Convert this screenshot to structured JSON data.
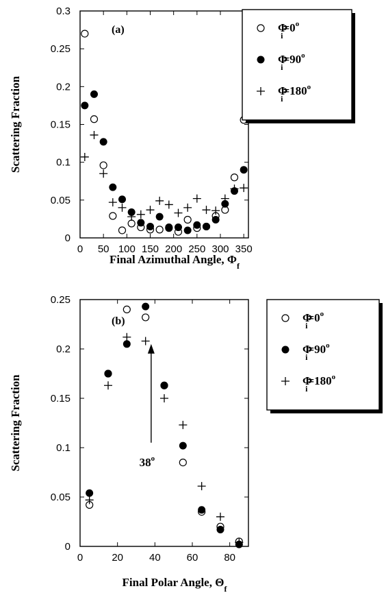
{
  "chart_data": [
    {
      "type": "scatter",
      "panel_label": "(a)",
      "xlabel": "Final Azimuthal Angle, Φ",
      "xlabel_sub": "f",
      "ylabel": "Scattering Fraction",
      "xlim": [
        0,
        360
      ],
      "ylim": [
        0,
        0.3
      ],
      "xticks": [
        "0",
        "50",
        "100",
        "150",
        "200",
        "250",
        "300",
        "350"
      ],
      "yticks": [
        "0",
        "0.05",
        "0.1",
        "0.15",
        "0.2",
        "0.25",
        "0.3"
      ],
      "legend_position": "top-right",
      "series": [
        {
          "legend": {
            "main": "Φ",
            "sub": "i",
            "value": "=0",
            "sup": "o"
          },
          "marker": "open-circle",
          "x": [
            10,
            30,
            50,
            70,
            90,
            110,
            130,
            150,
            170,
            190,
            210,
            230,
            250,
            270,
            290,
            310,
            330,
            350
          ],
          "y": [
            0.27,
            0.157,
            0.096,
            0.029,
            0.01,
            0.019,
            0.014,
            0.011,
            0.011,
            0.013,
            0.008,
            0.024,
            0.013,
            0.015,
            0.029,
            0.037,
            0.08,
            0.156
          ]
        },
        {
          "legend": {
            "main": "Φ",
            "sub": "i",
            "value": "=90",
            "sup": "o"
          },
          "marker": "filled-circle",
          "x": [
            10,
            30,
            50,
            70,
            90,
            110,
            130,
            150,
            170,
            190,
            210,
            230,
            250,
            270,
            290,
            310,
            330,
            350
          ],
          "y": [
            0.175,
            0.19,
            0.127,
            0.067,
            0.051,
            0.034,
            0.02,
            0.015,
            0.028,
            0.014,
            0.014,
            0.01,
            0.017,
            0.015,
            0.024,
            0.045,
            0.062,
            0.09
          ]
        },
        {
          "legend": {
            "main": "Φ",
            "sub": "i",
            "value": "=180",
            "sup": "o"
          },
          "marker": "plus",
          "x": [
            10,
            30,
            50,
            70,
            90,
            110,
            130,
            150,
            170,
            190,
            210,
            230,
            250,
            270,
            290,
            310,
            330,
            350
          ],
          "y": [
            0.107,
            0.136,
            0.085,
            0.047,
            0.04,
            0.028,
            0.031,
            0.037,
            0.049,
            0.044,
            0.033,
            0.04,
            0.052,
            0.037,
            0.036,
            0.052,
            0.065,
            0.066
          ]
        }
      ]
    },
    {
      "type": "scatter",
      "panel_label": "(b)",
      "xlabel": "Final Polar Angle, Θ",
      "xlabel_sub": "f",
      "ylabel": "Scattering Fraction",
      "xlim": [
        0,
        90
      ],
      "ylim": [
        0,
        0.25
      ],
      "xticks": [
        "0",
        "20",
        "40",
        "60",
        "80"
      ],
      "yticks": [
        "0",
        "0.05",
        "0.1",
        "0.15",
        "0.2",
        "0.25"
      ],
      "legend_position": "top-right",
      "annotation": {
        "text": "38",
        "sup": "o",
        "arrow_x": 38,
        "arrow_from_y": 0.105,
        "arrow_to_y": 0.205
      },
      "series": [
        {
          "legend": {
            "main": "Φ",
            "sub": "i",
            "value": "=0",
            "sup": "o"
          },
          "marker": "open-circle",
          "x": [
            5,
            15,
            25,
            35,
            45,
            55,
            65,
            75,
            85
          ],
          "y": [
            0.042,
            0.175,
            0.24,
            0.232,
            0.163,
            0.085,
            0.035,
            0.02,
            0.005
          ]
        },
        {
          "legend": {
            "main": "Φ",
            "sub": "i",
            "value": "=90",
            "sup": "o"
          },
          "marker": "filled-circle",
          "x": [
            5,
            15,
            25,
            35,
            45,
            55,
            65,
            75,
            85
          ],
          "y": [
            0.054,
            0.175,
            0.205,
            0.243,
            0.163,
            0.102,
            0.037,
            0.017,
            0.002
          ]
        },
        {
          "legend": {
            "main": "Φ",
            "sub": "i",
            "value": "=180",
            "sup": "o"
          },
          "marker": "plus",
          "x": [
            5,
            15,
            25,
            35,
            45,
            55,
            65,
            75,
            85
          ],
          "y": [
            0.047,
            0.163,
            0.212,
            0.208,
            0.15,
            0.123,
            0.061,
            0.03,
            0.004
          ]
        }
      ]
    }
  ]
}
